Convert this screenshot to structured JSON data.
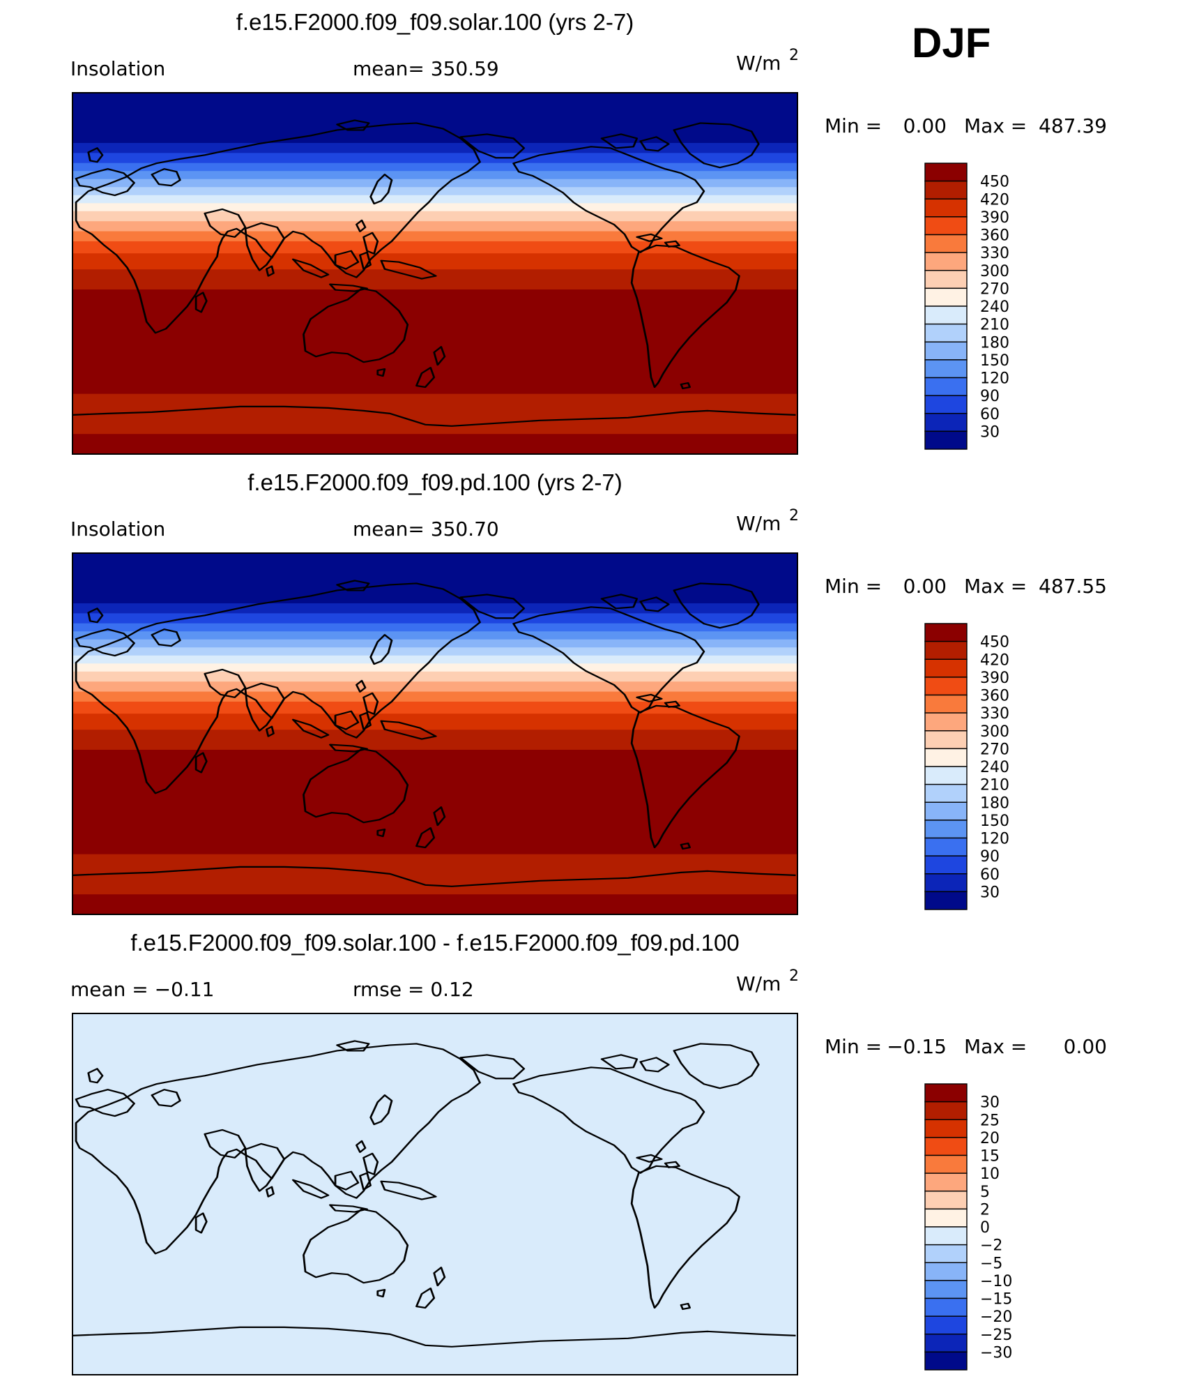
{
  "season": "DJF",
  "chart_data": [
    {
      "type": "heatmap",
      "title": "f.e15.F2000.f09_f09.solar.100 (yrs 2-7)",
      "left_label": "Insolation",
      "center_label": "mean= 350.59",
      "units": "W/m",
      "units_sup": "2",
      "minmax": {
        "min_label": "Min =",
        "min": "0.00",
        "max_label": "Max =",
        "max": "487.39"
      },
      "colorbar": {
        "levels": [
          "450",
          "420",
          "390",
          "360",
          "330",
          "300",
          "270",
          "240",
          "210",
          "180",
          "150",
          "120",
          "90",
          "60",
          "30"
        ],
        "colors": [
          "#8b0000",
          "#b21e00",
          "#d63200",
          "#f04c14",
          "#f97a3c",
          "#fda77d",
          "#fdcfb3",
          "#fff2e4",
          "#d9ebfb",
          "#b1d1fb",
          "#88b4f8",
          "#5c94f3",
          "#3a70f0",
          "#1e46e0",
          "#0c25b8",
          "#000a8a"
        ]
      },
      "latitude_bands": [
        {
          "lat_north": 90,
          "lat_south": 65,
          "value": 0
        },
        {
          "lat_north": 65,
          "lat_south": 60,
          "value": 45
        },
        {
          "lat_north": 60,
          "lat_south": 55,
          "value": 75
        },
        {
          "lat_north": 55,
          "lat_south": 51,
          "value": 105
        },
        {
          "lat_north": 51,
          "lat_south": 47,
          "value": 135
        },
        {
          "lat_north": 47,
          "lat_south": 43,
          "value": 165
        },
        {
          "lat_north": 43,
          "lat_south": 39,
          "value": 195
        },
        {
          "lat_north": 39,
          "lat_south": 35,
          "value": 225
        },
        {
          "lat_north": 35,
          "lat_south": 31,
          "value": 255
        },
        {
          "lat_north": 31,
          "lat_south": 26,
          "value": 285
        },
        {
          "lat_north": 26,
          "lat_south": 21,
          "value": 315
        },
        {
          "lat_north": 21,
          "lat_south": 16,
          "value": 345
        },
        {
          "lat_north": 16,
          "lat_south": 10,
          "value": 375
        },
        {
          "lat_north": 10,
          "lat_south": 2,
          "value": 405
        },
        {
          "lat_north": 2,
          "lat_south": -8,
          "value": 435
        },
        {
          "lat_north": -8,
          "lat_south": -60,
          "value": 465
        },
        {
          "lat_north": -60,
          "lat_south": -80,
          "value": 435
        },
        {
          "lat_north": -80,
          "lat_south": -90,
          "value": 465
        }
      ]
    },
    {
      "type": "heatmap",
      "title": "f.e15.F2000.f09_f09.pd.100 (yrs 2-7)",
      "left_label": "Insolation",
      "center_label": "mean= 350.70",
      "units": "W/m",
      "units_sup": "2",
      "minmax": {
        "min_label": "Min =",
        "min": "0.00",
        "max_label": "Max =",
        "max": "487.55"
      },
      "colorbar": {
        "levels": [
          "450",
          "420",
          "390",
          "360",
          "330",
          "300",
          "270",
          "240",
          "210",
          "180",
          "150",
          "120",
          "90",
          "60",
          "30"
        ],
        "colors": [
          "#8b0000",
          "#b21e00",
          "#d63200",
          "#f04c14",
          "#f97a3c",
          "#fda77d",
          "#fdcfb3",
          "#fff2e4",
          "#d9ebfb",
          "#b1d1fb",
          "#88b4f8",
          "#5c94f3",
          "#3a70f0",
          "#1e46e0",
          "#0c25b8",
          "#000a8a"
        ]
      },
      "latitude_bands": [
        {
          "lat_north": 90,
          "lat_south": 65,
          "value": 0
        },
        {
          "lat_north": 65,
          "lat_south": 60,
          "value": 45
        },
        {
          "lat_north": 60,
          "lat_south": 55,
          "value": 75
        },
        {
          "lat_north": 55,
          "lat_south": 51,
          "value": 105
        },
        {
          "lat_north": 51,
          "lat_south": 47,
          "value": 135
        },
        {
          "lat_north": 47,
          "lat_south": 43,
          "value": 165
        },
        {
          "lat_north": 43,
          "lat_south": 39,
          "value": 195
        },
        {
          "lat_north": 39,
          "lat_south": 35,
          "value": 225
        },
        {
          "lat_north": 35,
          "lat_south": 31,
          "value": 255
        },
        {
          "lat_north": 31,
          "lat_south": 26,
          "value": 285
        },
        {
          "lat_north": 26,
          "lat_south": 21,
          "value": 315
        },
        {
          "lat_north": 21,
          "lat_south": 16,
          "value": 345
        },
        {
          "lat_north": 16,
          "lat_south": 10,
          "value": 375
        },
        {
          "lat_north": 10,
          "lat_south": 2,
          "value": 405
        },
        {
          "lat_north": 2,
          "lat_south": -8,
          "value": 435
        },
        {
          "lat_north": -8,
          "lat_south": -60,
          "value": 465
        },
        {
          "lat_north": -60,
          "lat_south": -80,
          "value": 435
        },
        {
          "lat_north": -80,
          "lat_south": -90,
          "value": 465
        }
      ]
    },
    {
      "type": "heatmap",
      "title": "f.e15.F2000.f09_f09.solar.100 - f.e15.F2000.f09_f09.pd.100",
      "left_label": "mean =   −0.11",
      "center_label": "rmse =    0.12",
      "units": "W/m",
      "units_sup": "2",
      "minmax": {
        "min_label": "Min =",
        "min": "−0.15",
        "max_label": "Max =",
        "max": "0.00"
      },
      "colorbar": {
        "levels": [
          "30",
          "25",
          "20",
          "15",
          "10",
          "5",
          "2",
          "0",
          "−2",
          "−5",
          "−10",
          "−15",
          "−20",
          "−25",
          "−30"
        ],
        "colors": [
          "#8b0000",
          "#b21e00",
          "#d63200",
          "#f04c14",
          "#f97a3c",
          "#fda77d",
          "#fdcfb3",
          "#fff2e4",
          "#d9ebfb",
          "#b1d1fb",
          "#88b4f8",
          "#5c94f3",
          "#3a70f0",
          "#1e46e0",
          "#0c25b8",
          "#000a8a"
        ]
      },
      "latitude_bands": [
        {
          "lat_north": 90,
          "lat_south": -90,
          "value": -0.11
        }
      ]
    }
  ]
}
